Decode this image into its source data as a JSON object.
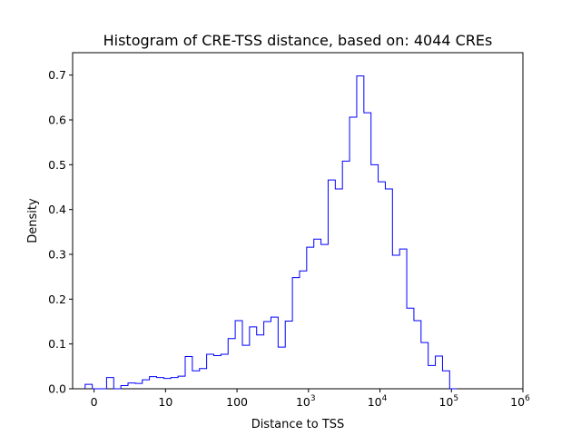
{
  "chart_data": {
    "type": "histogram",
    "title": "Histogram of CRE-TSS distance, based on: 4044 CREs",
    "xlabel": "Distance to TSS",
    "ylabel": "Density",
    "x_scale": "symlog",
    "x_tick_labels": [
      {
        "value": 0,
        "base": "0",
        "exp": ""
      },
      {
        "value": 10,
        "base": "10",
        "exp": ""
      },
      {
        "value": 100,
        "base": "100",
        "exp": ""
      },
      {
        "value": 1000,
        "base": "10",
        "exp": "3"
      },
      {
        "value": 10000,
        "base": "10",
        "exp": "4"
      },
      {
        "value": 100000,
        "base": "10",
        "exp": "5"
      },
      {
        "value": 1000000,
        "base": "10",
        "exp": "6"
      }
    ],
    "y_ticks": [
      0.0,
      0.1,
      0.2,
      0.3,
      0.4,
      0.5,
      0.6,
      0.7
    ],
    "ylim": [
      0,
      0.75
    ],
    "bin_start_log10": -0.125,
    "bin_width_log10": 0.1,
    "densities": [
      0.01,
      0.0,
      0.0,
      0.025,
      0.0,
      0.007,
      0.013,
      0.012,
      0.02,
      0.027,
      0.025,
      0.023,
      0.025,
      0.028,
      0.072,
      0.04,
      0.045,
      0.077,
      0.074,
      0.077,
      0.112,
      0.152,
      0.097,
      0.138,
      0.12,
      0.15,
      0.16,
      0.093,
      0.151,
      0.248,
      0.263,
      0.316,
      0.334,
      0.322,
      0.466,
      0.446,
      0.508,
      0.606,
      0.698,
      0.616,
      0.5,
      0.462,
      0.446,
      0.298,
      0.312,
      0.18,
      0.152,
      0.103,
      0.052,
      0.073,
      0.04,
      0.0
    ],
    "line_color": "#0000ff",
    "grid": false
  }
}
